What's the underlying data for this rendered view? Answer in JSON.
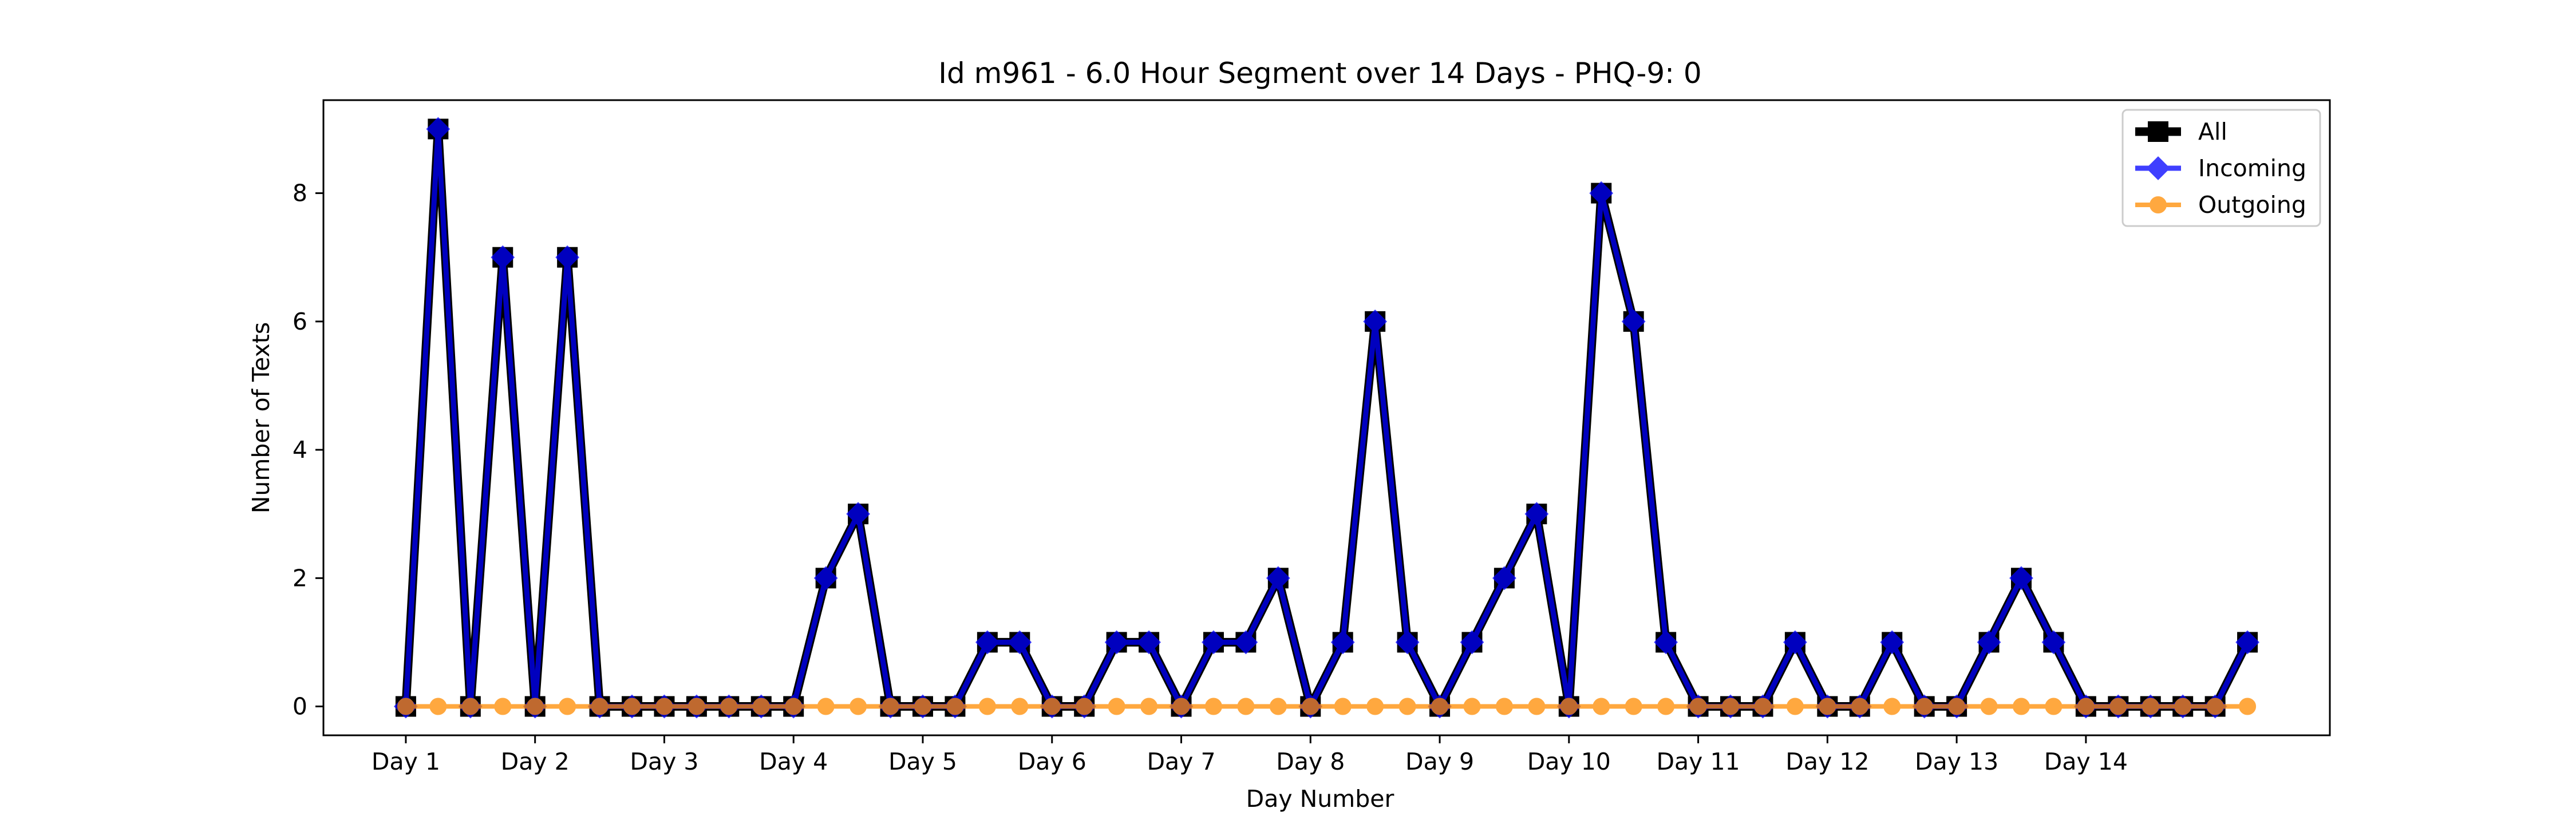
{
  "chart_data": {
    "type": "line",
    "title": "Id m961 - 6.0 Hour Segment over 14 Days - PHQ-9: 0",
    "xlabel": "Day Number",
    "ylabel": "Number of Texts",
    "x_tick_labels": [
      "Day 1",
      "Day 2",
      "Day 3",
      "Day 4",
      "Day 5",
      "Day 6",
      "Day 7",
      "Day 8",
      "Day 9",
      "Day 10",
      "Day 11",
      "Day 12",
      "Day 13",
      "Day 14"
    ],
    "y_ticks": [
      0,
      2,
      4,
      6,
      8
    ],
    "ylim": [
      -0.45,
      9.45
    ],
    "segments_per_day": 4,
    "legend_position": "top-right",
    "grid": false,
    "series": [
      {
        "name": "All",
        "color": "#000000",
        "marker": "square",
        "values": [
          0,
          9,
          0,
          7,
          0,
          7,
          0,
          0,
          0,
          0,
          0,
          0,
          0,
          2,
          3,
          0,
          0,
          0,
          1,
          1,
          0,
          0,
          1,
          1,
          0,
          1,
          1,
          2,
          0,
          1,
          6,
          1,
          0,
          1,
          2,
          3,
          0,
          8,
          6,
          1,
          0,
          0,
          0,
          1,
          0,
          0,
          1,
          0,
          0,
          1,
          2,
          1,
          0,
          0,
          0,
          0,
          0,
          1
        ]
      },
      {
        "name": "Incoming",
        "color": "#0000ff",
        "marker": "diamond",
        "values": [
          0,
          9,
          0,
          7,
          0,
          7,
          0,
          0,
          0,
          0,
          0,
          0,
          0,
          2,
          3,
          0,
          0,
          0,
          1,
          1,
          0,
          0,
          1,
          1,
          0,
          1,
          1,
          2,
          0,
          1,
          6,
          1,
          0,
          1,
          2,
          3,
          0,
          8,
          6,
          1,
          0,
          0,
          0,
          1,
          0,
          0,
          1,
          0,
          0,
          1,
          2,
          1,
          0,
          0,
          0,
          0,
          0,
          1
        ]
      },
      {
        "name": "Outgoing",
        "color": "#ff8c00",
        "marker": "circle",
        "values": [
          0,
          0,
          0,
          0,
          0,
          0,
          0,
          0,
          0,
          0,
          0,
          0,
          0,
          0,
          0,
          0,
          0,
          0,
          0,
          0,
          0,
          0,
          0,
          0,
          0,
          0,
          0,
          0,
          0,
          0,
          0,
          0,
          0,
          0,
          0,
          0,
          0,
          0,
          0,
          0,
          0,
          0,
          0,
          0,
          0,
          0,
          0,
          0,
          0,
          0,
          0,
          0,
          0,
          0,
          0,
          0,
          0,
          0
        ]
      }
    ]
  }
}
